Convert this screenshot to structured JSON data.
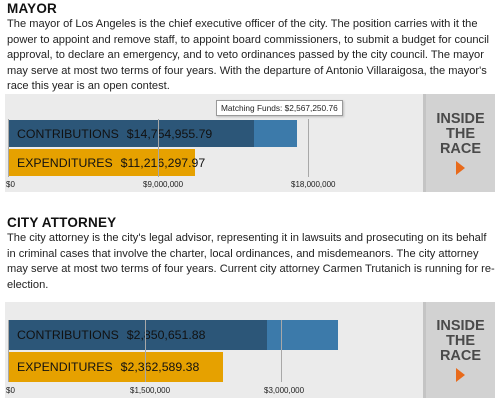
{
  "mayor": {
    "title": "MAYOR",
    "description": "The mayor of Los Angeles is the chief executive officer of the city. The position carries with it the power to appoint and remove staff, to appoint board commissioners, to submit a budget for council approval, to declare an emergency, and to veto ordinances passed by the city council. The mayor may serve at most two terms of four years. With the departure of Antonio Villaraigosa, the mayor's race this year is an open contest.",
    "tooltip": "Matching Funds: $2,567,250.76",
    "contributions_label": "CONTRIBUTIONS",
    "contributions_amount": "$14,754,955.79",
    "expenditures_label": "EXPENDITURES",
    "expenditures_amount": "$11,216,297.97",
    "ticks": [
      "$0",
      "$9,000,000",
      "$18,000,000"
    ],
    "button": [
      "INSIDE",
      "THE",
      "RACE"
    ]
  },
  "city_attorney": {
    "title": "CITY ATTORNEY",
    "description": "The city attorney is the city's legal advisor, representing it in lawsuits and prosecuting on its behalf in criminal cases that involve the charter, local ordinances, and misdemeanors. The city attorney may serve at most two terms of four years. Current city attorney Carmen Trutanich is running for re-election.",
    "contributions_label": "CONTRIBUTIONS",
    "contributions_amount": "$2,850,651.88",
    "expenditures_label": "EXPENDITURES",
    "expenditures_amount": "$2,362,589.38",
    "ticks": [
      "$0",
      "$1,500,000",
      "$3,000,000"
    ],
    "button": [
      "INSIDE",
      "THE",
      "RACE"
    ]
  },
  "colors": {
    "contributions": "#2c5678",
    "matching_funds": "#3c7aaa",
    "expenditures": "#e6a100",
    "panel_bg": "#ebebeb",
    "button_bg": "#d2d2d2",
    "arrow": "#e86a1b"
  },
  "chart_data": [
    {
      "type": "bar",
      "title": "MAYOR",
      "categories": [
        "CONTRIBUTIONS",
        "EXPENDITURES"
      ],
      "series": [
        {
          "name": "",
          "values": [
            14754955.79,
            11216297.97
          ]
        },
        {
          "name": "Matching Funds",
          "values": [
            2567250.76,
            0
          ]
        }
      ],
      "xlim": [
        0,
        18000000
      ]
    },
    {
      "type": "bar",
      "title": "CITY ATTORNEY",
      "categories": [
        "CONTRIBUTIONS",
        "EXPENDITURES"
      ],
      "series": [
        {
          "name": "",
          "values": [
            2850651.88,
            2362589.38
          ]
        },
        {
          "name": "",
          "values": [
            780000,
            0
          ]
        }
      ],
      "xlim": [
        0,
        3000000
      ]
    }
  ]
}
